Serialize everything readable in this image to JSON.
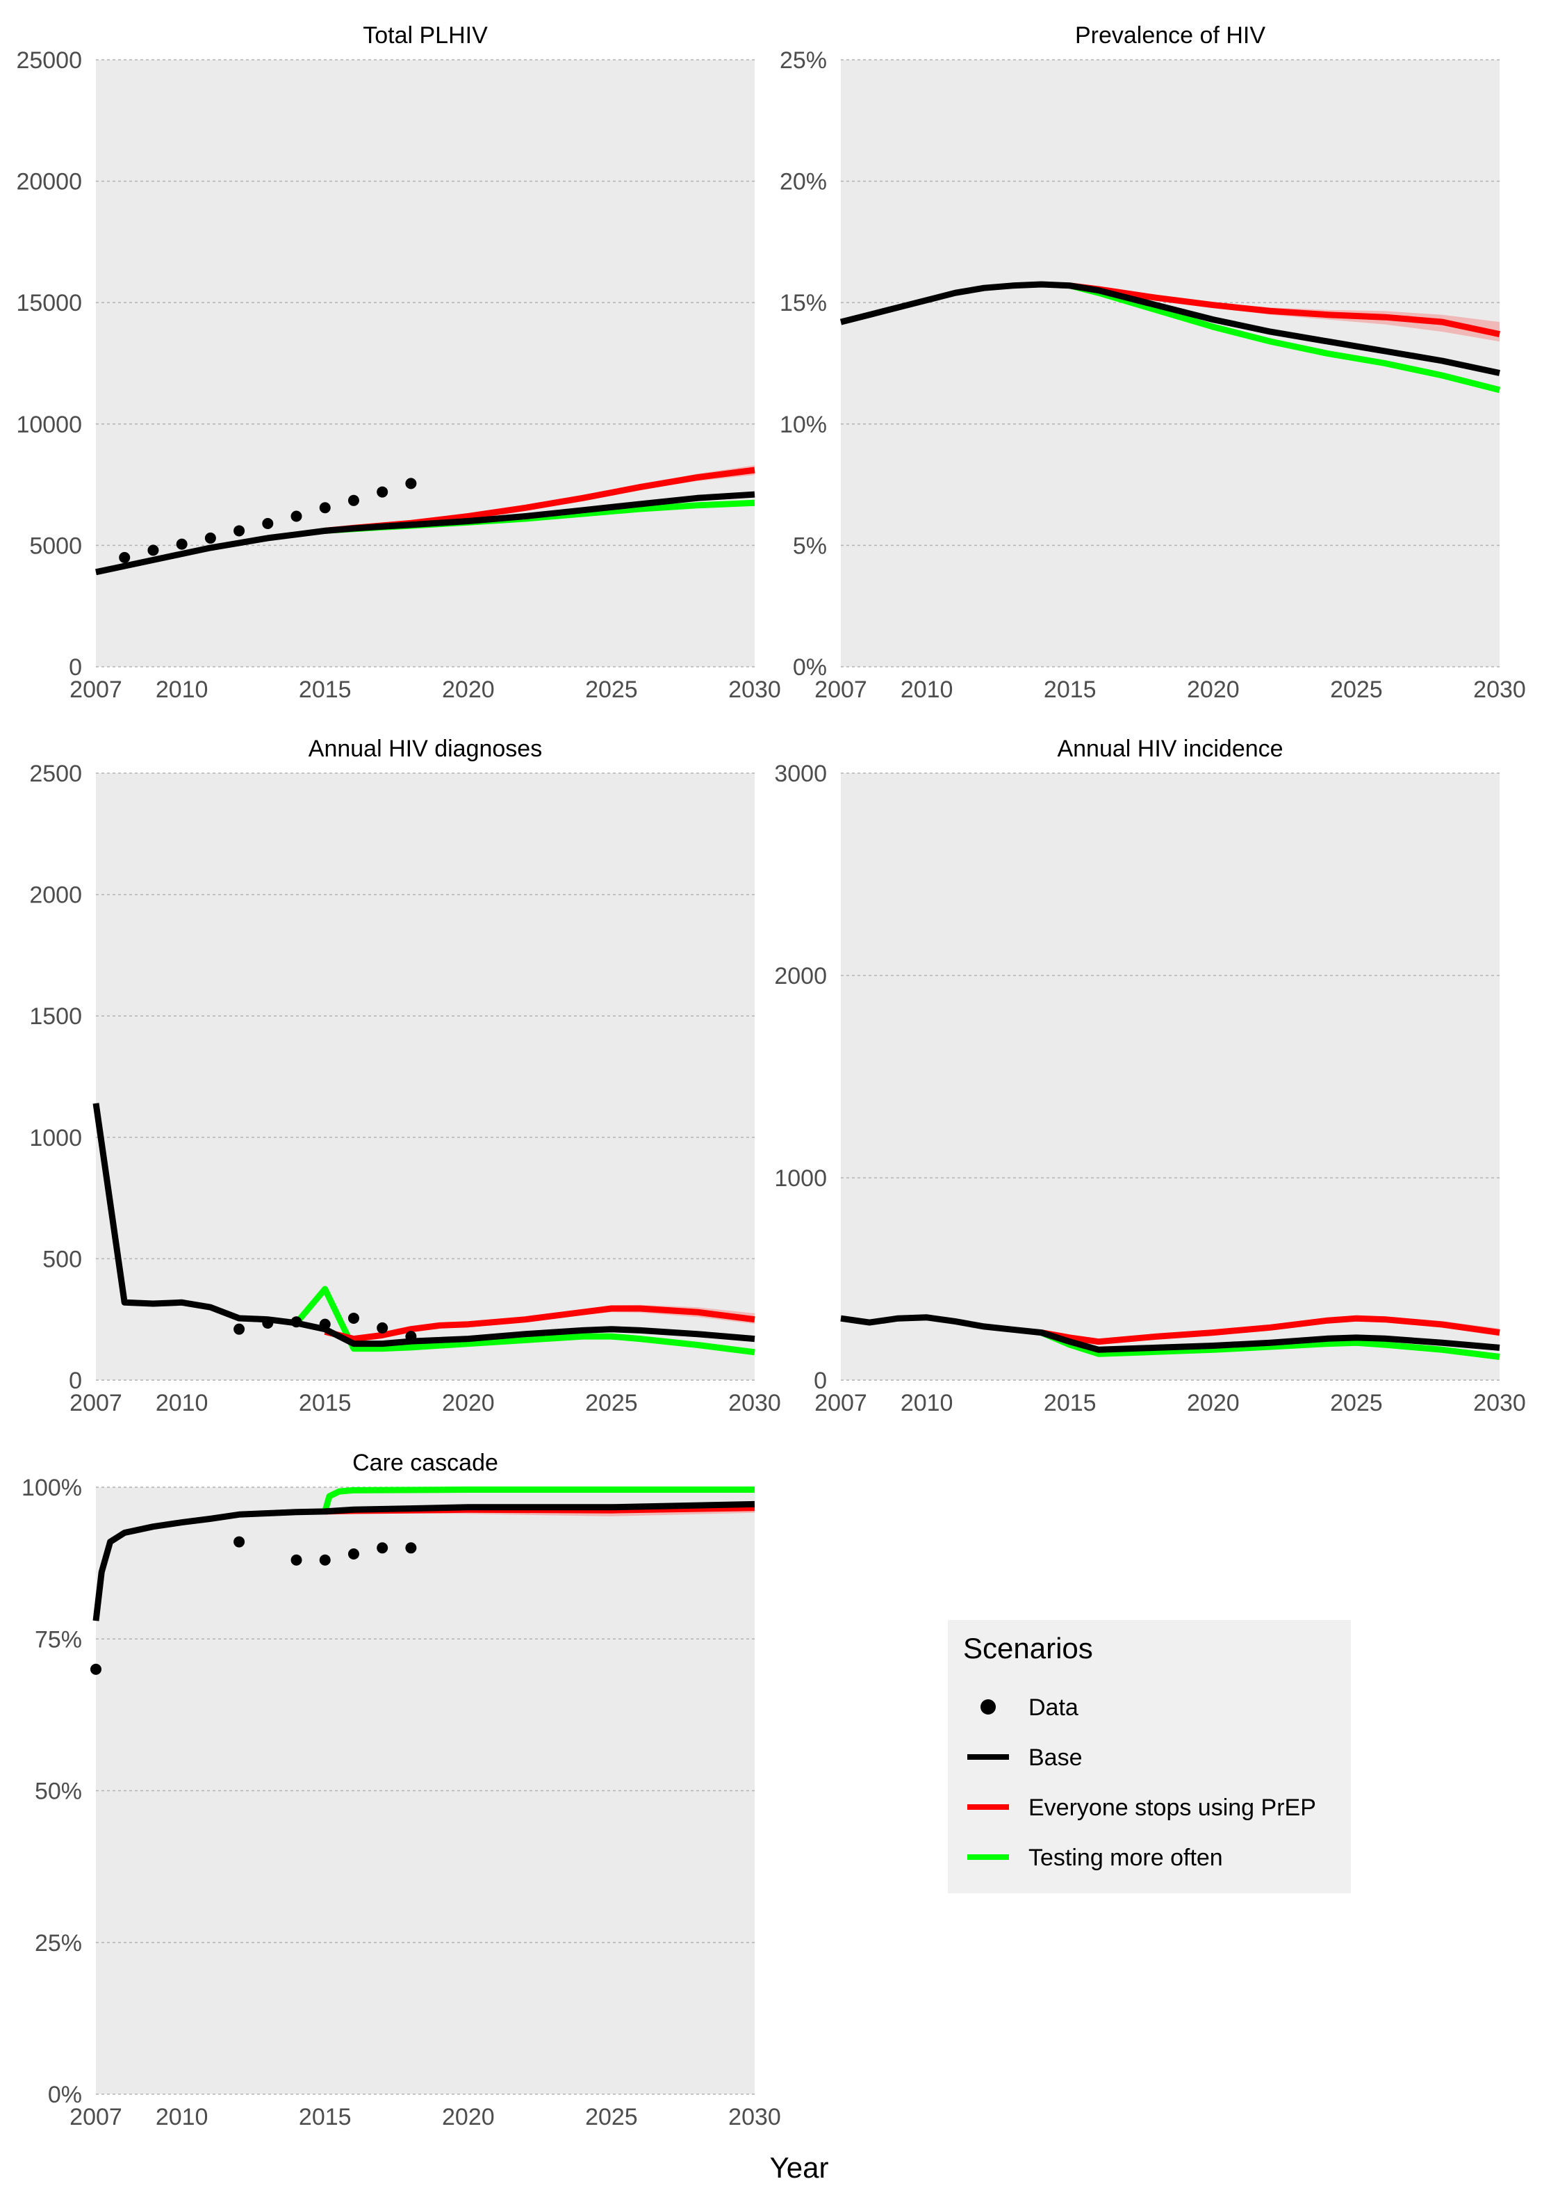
{
  "xlabel": "Year",
  "colors": {
    "panel_bg": "#ebebeb",
    "grid": "#b3b3b3",
    "data": "#000000",
    "base": "#000000",
    "stop_prep": "#ff0000",
    "testing": "#00ff00",
    "band_stop": "#f4a3a3",
    "legend_bg": "#f0f0f0",
    "axis_text": "#4d4d4d"
  },
  "legend": {
    "title": "Scenarios",
    "items": [
      {
        "label": "Data",
        "kind": "point",
        "color": "#000000"
      },
      {
        "label": "Base",
        "kind": "line",
        "color": "#000000"
      },
      {
        "label": "Everyone stops using PrEP",
        "kind": "line",
        "color": "#ff0000"
      },
      {
        "label": "Testing more often",
        "kind": "line",
        "color": "#00ff00"
      }
    ]
  },
  "chart_data": [
    {
      "type": "line",
      "title": "Total PLHIV",
      "xlim": [
        2007,
        2030
      ],
      "ylim": [
        0,
        25000
      ],
      "xticks": [
        2007,
        2010,
        2015,
        2020,
        2025,
        2030
      ],
      "yticks": [
        0,
        5000,
        10000,
        15000,
        20000,
        25000
      ],
      "ytick_labels": [
        "0",
        "5000",
        "10000",
        "15000",
        "20000",
        "25000"
      ],
      "data_points": {
        "x": [
          2008,
          2009,
          2010,
          2011,
          2012,
          2013,
          2014,
          2015,
          2016,
          2017,
          2018
        ],
        "y": [
          4500,
          4800,
          5050,
          5300,
          5600,
          5900,
          6200,
          6550,
          6850,
          7200,
          7550
        ]
      },
      "series": [
        {
          "key": "base",
          "x": [
            2007,
            2008,
            2009,
            2010,
            2011,
            2012,
            2013,
            2014,
            2015,
            2016,
            2017,
            2018,
            2020,
            2022,
            2024,
            2026,
            2028,
            2030
          ],
          "y": [
            3900,
            4150,
            4400,
            4650,
            4900,
            5100,
            5300,
            5450,
            5600,
            5700,
            5780,
            5850,
            6000,
            6200,
            6450,
            6700,
            6950,
            7100
          ]
        },
        {
          "key": "stop_prep",
          "x": [
            2015,
            2016,
            2017,
            2018,
            2020,
            2022,
            2024,
            2026,
            2028,
            2030
          ],
          "y": [
            5600,
            5720,
            5820,
            5920,
            6200,
            6550,
            6950,
            7400,
            7800,
            8100
          ],
          "band": {
            "lower": [
              5600,
              5710,
              5800,
              5900,
              6170,
              6500,
              6880,
              7300,
              7650,
              7900
            ],
            "upper": [
              5600,
              5730,
              5840,
              5950,
              6240,
              6600,
              7020,
              7500,
              7950,
              8300
            ]
          }
        },
        {
          "key": "testing",
          "x": [
            2015,
            2016,
            2017,
            2018,
            2020,
            2022,
            2024,
            2026,
            2028,
            2030
          ],
          "y": [
            5600,
            5680,
            5750,
            5810,
            5950,
            6100,
            6300,
            6500,
            6650,
            6750
          ]
        }
      ]
    },
    {
      "type": "line",
      "title": "Prevalence of HIV",
      "xlim": [
        2007,
        2030
      ],
      "ylim": [
        0,
        25
      ],
      "xticks": [
        2007,
        2010,
        2015,
        2020,
        2025,
        2030
      ],
      "yticks": [
        0,
        5,
        10,
        15,
        20,
        25
      ],
      "ytick_labels": [
        "0%",
        "5%",
        "10%",
        "15%",
        "20%",
        "25%"
      ],
      "series": [
        {
          "key": "base",
          "x": [
            2007,
            2008,
            2009,
            2010,
            2011,
            2012,
            2013,
            2014,
            2015,
            2016,
            2018,
            2020,
            2022,
            2024,
            2026,
            2028,
            2030
          ],
          "y": [
            14.2,
            14.5,
            14.8,
            15.1,
            15.4,
            15.6,
            15.7,
            15.75,
            15.7,
            15.5,
            14.9,
            14.3,
            13.8,
            13.4,
            13.0,
            12.6,
            12.1
          ]
        },
        {
          "key": "stop_prep",
          "x": [
            2015,
            2016,
            2018,
            2020,
            2022,
            2024,
            2026,
            2028,
            2030
          ],
          "y": [
            15.7,
            15.55,
            15.2,
            14.9,
            14.65,
            14.5,
            14.4,
            14.2,
            13.7
          ],
          "band": {
            "lower": [
              15.7,
              15.5,
              15.1,
              14.8,
              14.5,
              14.3,
              14.1,
              13.8,
              13.4
            ],
            "upper": [
              15.7,
              15.6,
              15.3,
              15.0,
              14.8,
              14.7,
              14.65,
              14.5,
              14.2
            ]
          }
        },
        {
          "key": "testing",
          "x": [
            2015,
            2016,
            2018,
            2020,
            2022,
            2024,
            2026,
            2028,
            2030
          ],
          "y": [
            15.7,
            15.4,
            14.7,
            14.0,
            13.4,
            12.9,
            12.5,
            12.0,
            11.4
          ]
        }
      ]
    },
    {
      "type": "line",
      "title": "Annual HIV diagnoses",
      "xlim": [
        2007,
        2030
      ],
      "ylim": [
        0,
        2500
      ],
      "xticks": [
        2007,
        2010,
        2015,
        2020,
        2025,
        2030
      ],
      "yticks": [
        0,
        500,
        1000,
        1500,
        2000,
        2500
      ],
      "ytick_labels": [
        "0",
        "500",
        "1000",
        "1500",
        "2000",
        "2500"
      ],
      "data_points": {
        "x": [
          2012,
          2013,
          2014,
          2015,
          2016,
          2017,
          2018
        ],
        "y": [
          210,
          235,
          240,
          230,
          255,
          215,
          180
        ]
      },
      "series": [
        {
          "key": "base",
          "x": [
            2007,
            2008,
            2009,
            2010,
            2011,
            2012,
            2013,
            2014,
            2015,
            2016,
            2017,
            2018,
            2020,
            2022,
            2024,
            2025,
            2026,
            2028,
            2030
          ],
          "y": [
            1140,
            320,
            315,
            320,
            300,
            255,
            250,
            235,
            210,
            150,
            150,
            160,
            170,
            190,
            205,
            210,
            205,
            190,
            170
          ]
        },
        {
          "key": "stop_prep",
          "x": [
            2015,
            2016,
            2017,
            2018,
            2019,
            2020,
            2022,
            2024,
            2025,
            2026,
            2028,
            2030
          ],
          "y": [
            200,
            170,
            185,
            210,
            225,
            230,
            250,
            280,
            295,
            295,
            280,
            250
          ],
          "band": {
            "lower": [
              200,
              165,
              180,
              205,
              218,
              222,
              240,
              268,
              280,
              278,
              260,
              232
            ],
            "upper": [
              200,
              175,
              190,
              215,
              232,
              238,
              260,
              292,
              308,
              310,
              300,
              275
            ]
          }
        },
        {
          "key": "testing",
          "x": [
            2014,
            2015,
            2016,
            2017,
            2018,
            2020,
            2022,
            2024,
            2025,
            2026,
            2028,
            2030
          ],
          "y": [
            235,
            375,
            130,
            130,
            135,
            150,
            165,
            180,
            180,
            170,
            145,
            115
          ]
        }
      ]
    },
    {
      "type": "line",
      "title": "Annual HIV incidence",
      "xlim": [
        2007,
        2030
      ],
      "ylim": [
        0,
        3000
      ],
      "xticks": [
        2007,
        2010,
        2015,
        2020,
        2025,
        2030
      ],
      "yticks": [
        0,
        1000,
        2000,
        3000
      ],
      "ytick_labels": [
        "0",
        "1000",
        "2000",
        "3000"
      ],
      "series": [
        {
          "key": "base",
          "x": [
            2007,
            2008,
            2009,
            2010,
            2011,
            2012,
            2013,
            2014,
            2015,
            2016,
            2018,
            2020,
            2022,
            2024,
            2025,
            2026,
            2028,
            2030
          ],
          "y": [
            305,
            285,
            305,
            310,
            290,
            265,
            250,
            235,
            190,
            150,
            160,
            170,
            185,
            205,
            210,
            205,
            185,
            160
          ]
        },
        {
          "key": "stop_prep",
          "x": [
            2014,
            2015,
            2016,
            2018,
            2020,
            2022,
            2024,
            2025,
            2026,
            2028,
            2030
          ],
          "y": [
            235,
            210,
            190,
            215,
            235,
            260,
            295,
            305,
            300,
            275,
            235
          ],
          "band": {
            "lower": [
              235,
              210,
              185,
              210,
              228,
              252,
              285,
              292,
              288,
              260,
              218
            ],
            "upper": [
              235,
              210,
              195,
              220,
              242,
              268,
              305,
              318,
              315,
              292,
              255
            ]
          }
        },
        {
          "key": "testing",
          "x": [
            2014,
            2015,
            2016,
            2018,
            2020,
            2022,
            2024,
            2025,
            2026,
            2028,
            2030
          ],
          "y": [
            235,
            175,
            130,
            140,
            150,
            165,
            180,
            185,
            175,
            150,
            115
          ]
        }
      ]
    },
    {
      "type": "line",
      "title": "Care cascade",
      "xlim": [
        2007,
        2030
      ],
      "ylim": [
        0,
        100
      ],
      "xticks": [
        2007,
        2010,
        2015,
        2020,
        2025,
        2030
      ],
      "yticks": [
        0,
        25,
        50,
        75,
        100
      ],
      "ytick_labels": [
        "0%",
        "25%",
        "50%",
        "75%",
        "100%"
      ],
      "data_points": {
        "x": [
          2007,
          2012,
          2014,
          2015,
          2016,
          2017,
          2018
        ],
        "y": [
          70,
          91,
          88,
          88,
          89,
          90,
          90
        ]
      },
      "series": [
        {
          "key": "base",
          "x": [
            2007,
            2007.2,
            2007.5,
            2008,
            2009,
            2010,
            2011,
            2012,
            2013,
            2014,
            2015,
            2016,
            2018,
            2020,
            2025,
            2030
          ],
          "y": [
            78,
            86,
            91,
            92.5,
            93.5,
            94.2,
            94.8,
            95.5,
            95.7,
            95.9,
            96,
            96.3,
            96.5,
            96.7,
            96.7,
            97.2
          ]
        },
        {
          "key": "stop_prep",
          "x": [
            2015,
            2016,
            2018,
            2020,
            2025,
            2030
          ],
          "y": [
            96,
            96.1,
            96.2,
            96.3,
            96.2,
            96.6
          ],
          "band": {
            "lower": [
              96,
              95.8,
              95.7,
              95.6,
              95.2,
              95.8
            ],
            "upper": [
              96,
              96.4,
              96.7,
              96.9,
              97.0,
              97.3
            ]
          }
        },
        {
          "key": "testing",
          "x": [
            2015,
            2015.15,
            2015.5,
            2016,
            2020,
            2025,
            2030
          ],
          "y": [
            96,
            98.5,
            99.3,
            99.5,
            99.6,
            99.6,
            99.6
          ]
        }
      ]
    }
  ]
}
